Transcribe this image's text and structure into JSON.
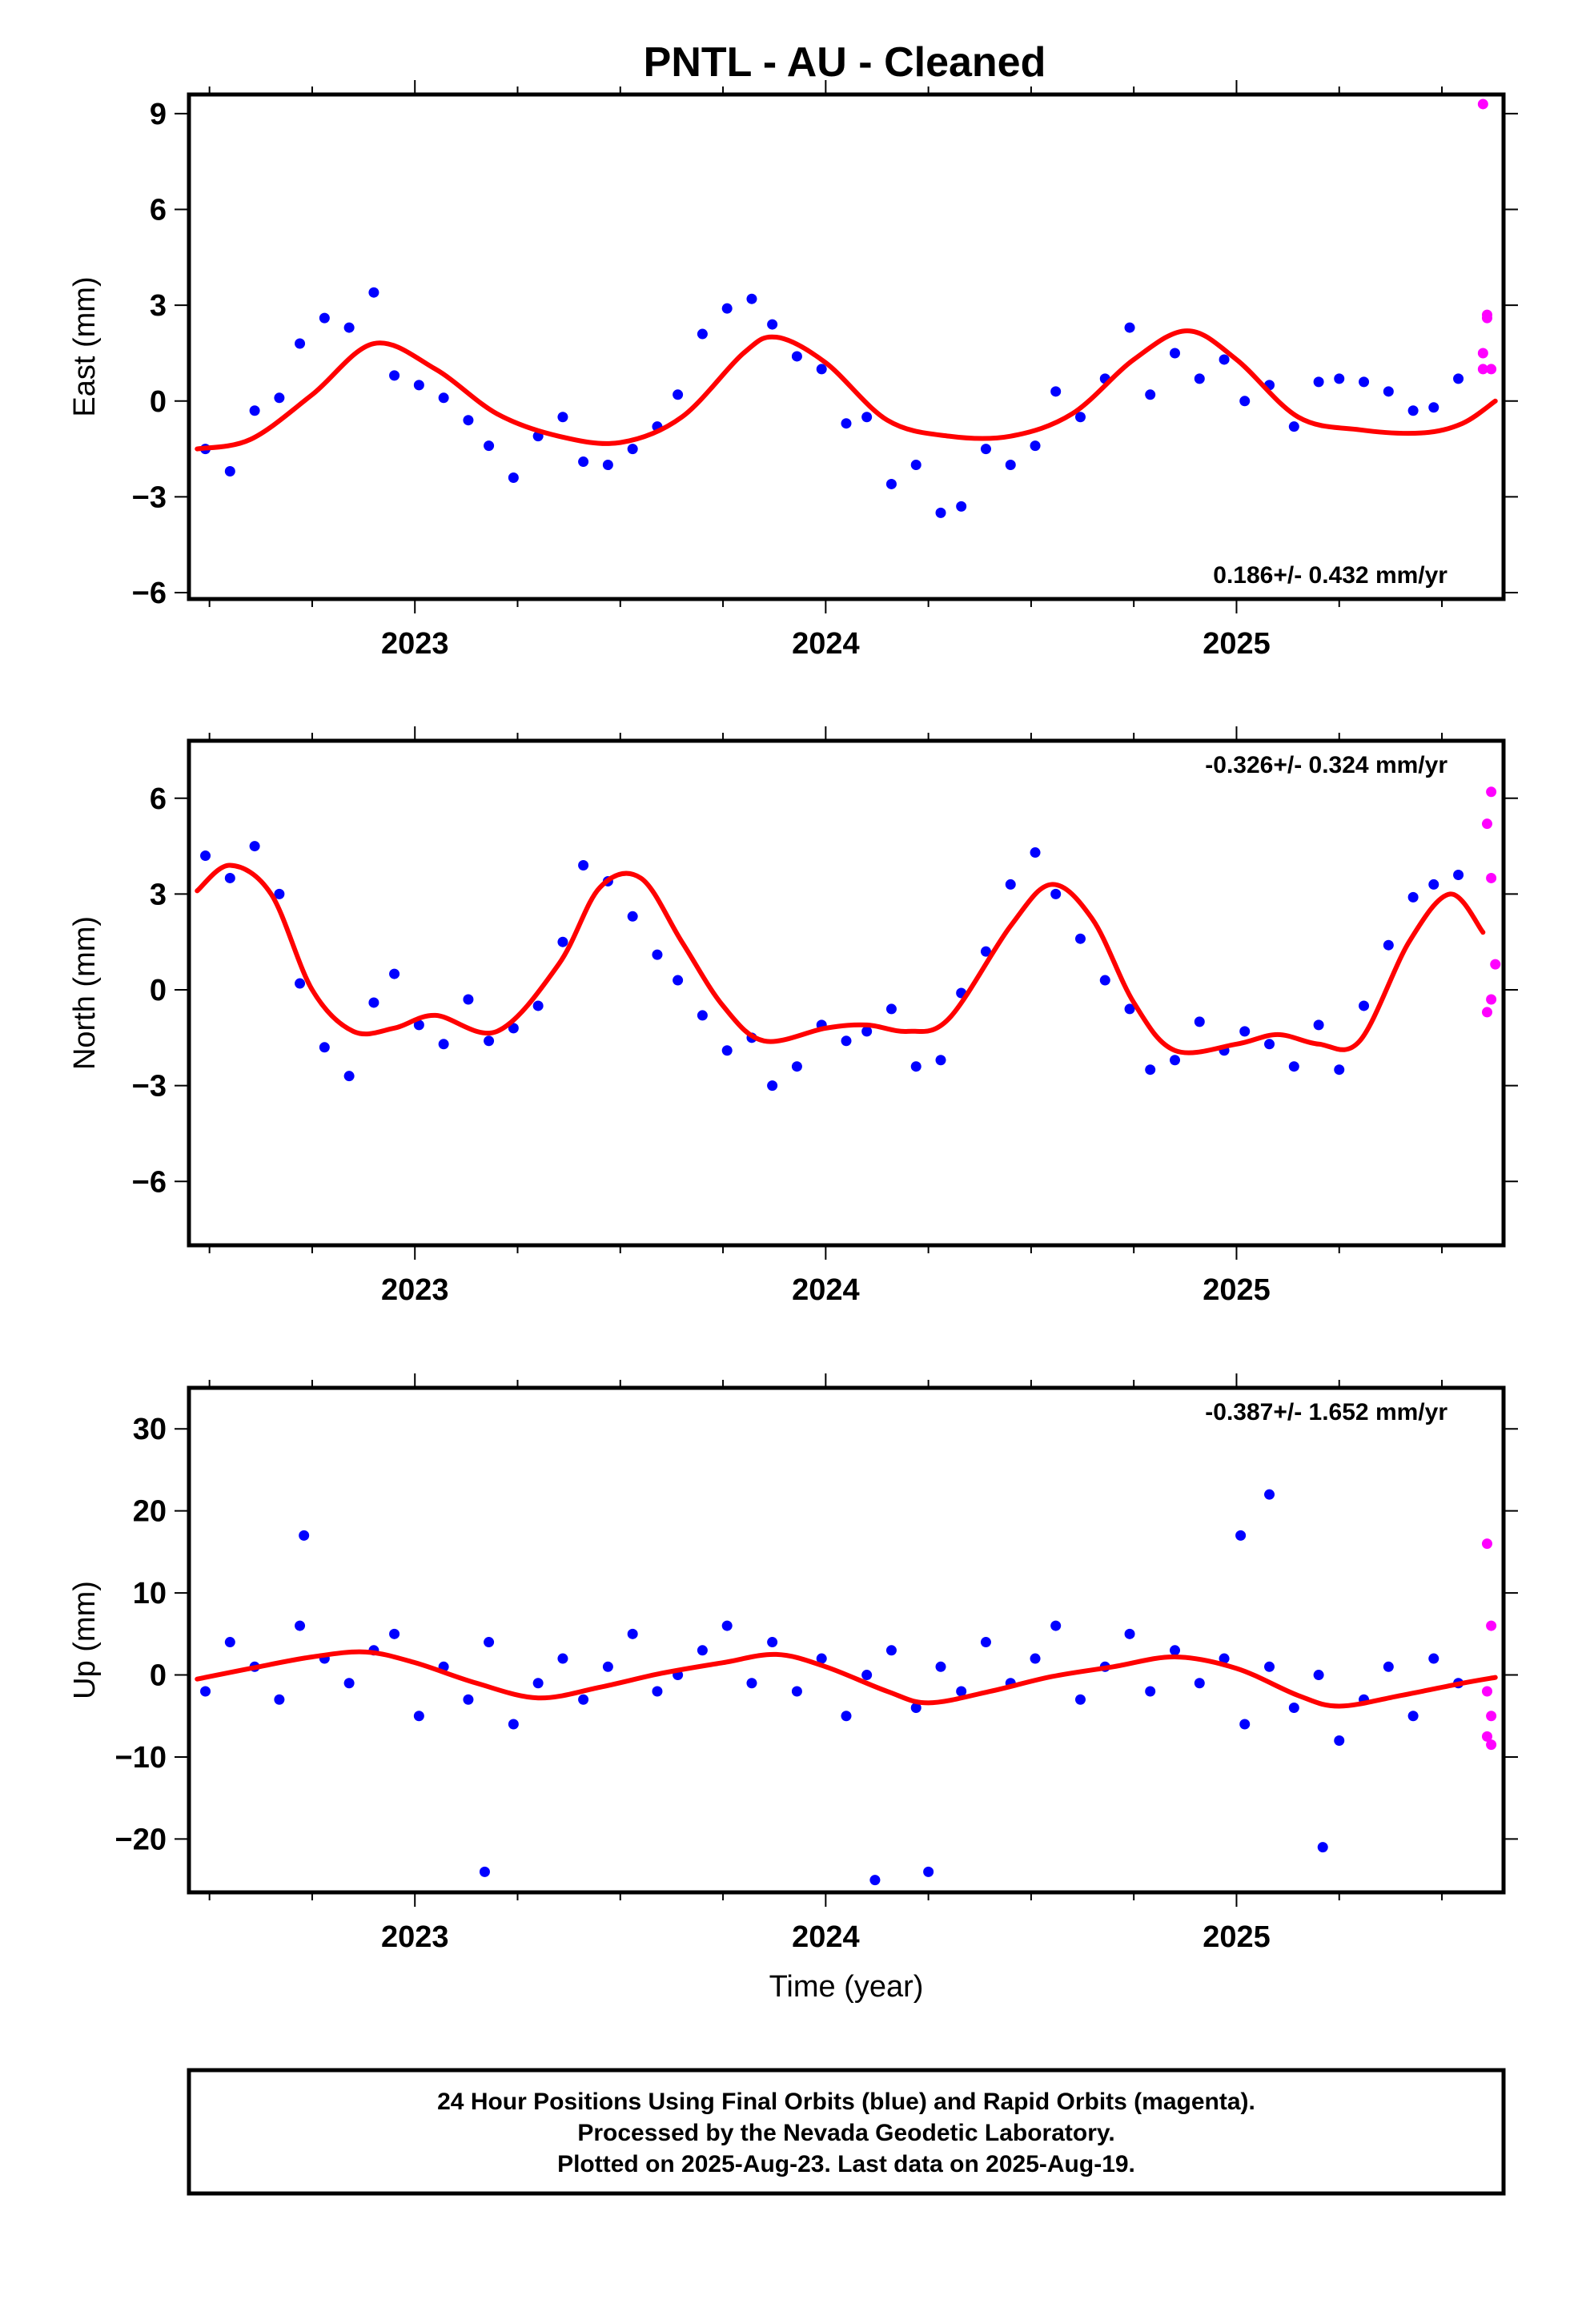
{
  "page": {
    "title": "PNTL  - AU - Cleaned",
    "footer_lines": [
      "24 Hour Positions Using Final Orbits (blue) and Rapid Orbits (magenta).",
      "Processed by the Nevada Geodetic Laboratory.",
      "Plotted on 2025-Aug-23. Last data on 2025-Aug-19."
    ]
  },
  "chart_data": [
    {
      "type": "scatter",
      "panel": "east",
      "ylabel": "East (mm)",
      "xlabel": "",
      "xlim": [
        2022.45,
        2025.65
      ],
      "ylim": [
        -6.2,
        9.6
      ],
      "yticks": [
        -6,
        -3,
        0,
        3,
        6,
        9
      ],
      "xticks": [
        2023,
        2024,
        2025
      ],
      "rate_label": "0.186+/- 0.432 mm/yr",
      "rate_position": "bottom-right",
      "grid": false,
      "colors": {
        "final": "#0000ff",
        "rapid": "#ff00ff",
        "fit": "#ff0000"
      },
      "series": [
        {
          "name": "Final Orbits (blue)",
          "kind": "points",
          "x": [
            2022.49,
            2022.55,
            2022.61,
            2022.67,
            2022.72,
            2022.78,
            2022.84,
            2022.9,
            2022.95,
            2023.01,
            2023.07,
            2023.13,
            2023.18,
            2023.24,
            2023.3,
            2023.36,
            2023.41,
            2023.47,
            2023.53,
            2023.59,
            2023.64,
            2023.7,
            2023.76,
            2023.82,
            2023.87,
            2023.93,
            2023.99,
            2024.05,
            2024.1,
            2024.16,
            2024.22,
            2024.28,
            2024.33,
            2024.39,
            2024.45,
            2024.51,
            2024.56,
            2024.62,
            2024.68,
            2024.74,
            2024.79,
            2024.85,
            2024.91,
            2024.97,
            2025.02,
            2025.08,
            2025.14,
            2025.2,
            2025.25,
            2025.31,
            2025.37,
            2025.43,
            2025.48,
            2025.54
          ],
          "y": [
            -1.5,
            -2.2,
            -0.3,
            0.1,
            1.8,
            2.6,
            2.3,
            3.4,
            0.8,
            0.5,
            0.1,
            -0.6,
            -1.4,
            -2.4,
            -1.1,
            -0.5,
            -1.9,
            -2.0,
            -1.5,
            -0.8,
            0.2,
            2.1,
            2.9,
            3.2,
            2.4,
            1.4,
            1.0,
            -0.7,
            -0.5,
            -2.6,
            -2.0,
            -3.5,
            -3.3,
            -1.5,
            -2.0,
            -1.4,
            0.3,
            -0.5,
            0.7,
            2.3,
            0.2,
            1.5,
            0.7,
            1.3,
            0.0,
            0.5,
            -0.8,
            0.6,
            0.7,
            0.6,
            0.3,
            -0.3,
            -0.2,
            0.7
          ]
        },
        {
          "name": "Rapid Orbits (magenta)",
          "kind": "points",
          "x": [
            2025.6,
            2025.61,
            2025.61,
            2025.6,
            2025.62,
            2025.6
          ],
          "y": [
            9.3,
            2.7,
            2.6,
            1.5,
            1.0,
            1.0
          ]
        },
        {
          "name": "fit",
          "kind": "line",
          "x": [
            2022.47,
            2022.6,
            2022.75,
            2022.9,
            2023.05,
            2023.2,
            2023.35,
            2023.5,
            2023.65,
            2023.8,
            2023.88,
            2024.0,
            2024.15,
            2024.3,
            2024.45,
            2024.6,
            2024.75,
            2024.88,
            2025.0,
            2025.15,
            2025.3,
            2025.45,
            2025.55,
            2025.63
          ],
          "y": [
            -1.5,
            -1.2,
            0.2,
            1.8,
            1.0,
            -0.4,
            -1.1,
            -1.3,
            -0.5,
            1.5,
            2.0,
            1.2,
            -0.6,
            -1.1,
            -1.1,
            -0.4,
            1.3,
            2.2,
            1.3,
            -0.5,
            -0.9,
            -1.0,
            -0.7,
            0.0
          ]
        }
      ]
    },
    {
      "type": "scatter",
      "panel": "north",
      "ylabel": "North (mm)",
      "xlabel": "",
      "xlim": [
        2022.45,
        2025.65
      ],
      "ylim": [
        -8,
        7.8
      ],
      "yticks": [
        -6,
        -3,
        0,
        3,
        6
      ],
      "xticks": [
        2023,
        2024,
        2025
      ],
      "rate_label": "-0.326+/- 0.324 mm/yr",
      "rate_position": "top-right",
      "grid": false,
      "colors": {
        "final": "#0000ff",
        "rapid": "#ff00ff",
        "fit": "#ff0000"
      },
      "series": [
        {
          "name": "Final Orbits (blue)",
          "kind": "points",
          "x": [
            2022.49,
            2022.55,
            2022.61,
            2022.67,
            2022.72,
            2022.78,
            2022.84,
            2022.9,
            2022.95,
            2023.01,
            2023.07,
            2023.13,
            2023.18,
            2023.24,
            2023.3,
            2023.36,
            2023.41,
            2023.47,
            2023.53,
            2023.59,
            2023.64,
            2023.7,
            2023.76,
            2023.82,
            2023.87,
            2023.93,
            2023.99,
            2024.05,
            2024.1,
            2024.16,
            2024.22,
            2024.28,
            2024.33,
            2024.39,
            2024.45,
            2024.51,
            2024.56,
            2024.62,
            2024.68,
            2024.74,
            2024.79,
            2024.85,
            2024.91,
            2024.97,
            2025.02,
            2025.08,
            2025.14,
            2025.2,
            2025.25,
            2025.31,
            2025.37,
            2025.43,
            2025.48,
            2025.54
          ],
          "y": [
            4.2,
            3.5,
            4.5,
            3.0,
            0.2,
            -1.8,
            -2.7,
            -0.4,
            0.5,
            -1.1,
            -1.7,
            -0.3,
            -1.6,
            -1.2,
            -0.5,
            1.5,
            3.9,
            3.4,
            2.3,
            1.1,
            0.3,
            -0.8,
            -1.9,
            -1.5,
            -3.0,
            -2.4,
            -1.1,
            -1.6,
            -1.3,
            -0.6,
            -2.4,
            -2.2,
            -0.1,
            1.2,
            3.3,
            4.3,
            3.0,
            1.6,
            0.3,
            -0.6,
            -2.5,
            -2.2,
            -1.0,
            -1.9,
            -1.3,
            -1.7,
            -2.4,
            -1.1,
            -2.5,
            -0.5,
            1.4,
            2.9,
            3.3,
            3.6
          ]
        },
        {
          "name": "Rapid Orbits (magenta)",
          "kind": "points",
          "x": [
            2025.62,
            2025.61,
            2025.62,
            2025.63,
            2025.62,
            2025.61
          ],
          "y": [
            6.2,
            5.2,
            3.5,
            0.8,
            -0.3,
            -0.7
          ]
        },
        {
          "name": "fit",
          "kind": "line",
          "x": [
            2022.47,
            2022.55,
            2022.65,
            2022.75,
            2022.85,
            2022.95,
            2023.05,
            2023.2,
            2023.35,
            2023.45,
            2023.55,
            2023.65,
            2023.75,
            2023.85,
            2024.0,
            2024.1,
            2024.2,
            2024.3,
            2024.45,
            2024.55,
            2024.65,
            2024.75,
            2024.85,
            2025.0,
            2025.1,
            2025.2,
            2025.3,
            2025.42,
            2025.52,
            2025.6
          ],
          "y": [
            3.1,
            3.9,
            3.0,
            0.0,
            -1.3,
            -1.2,
            -0.8,
            -1.3,
            0.8,
            3.2,
            3.5,
            1.5,
            -0.5,
            -1.6,
            -1.2,
            -1.1,
            -1.3,
            -0.9,
            2.0,
            3.3,
            2.2,
            -0.4,
            -1.9,
            -1.7,
            -1.4,
            -1.7,
            -1.6,
            1.5,
            3.0,
            1.8
          ]
        }
      ]
    },
    {
      "type": "scatter",
      "panel": "up",
      "ylabel": "Up (mm)",
      "xlabel": "Time (year)",
      "xlim": [
        2022.45,
        2025.65
      ],
      "ylim": [
        -26.5,
        35
      ],
      "yticks": [
        -20,
        -10,
        0,
        10,
        20,
        30
      ],
      "xticks": [
        2023,
        2024,
        2025
      ],
      "rate_label": "-0.387+/- 1.652 mm/yr",
      "rate_position": "top-right",
      "grid": false,
      "colors": {
        "final": "#0000ff",
        "rapid": "#ff00ff",
        "fit": "#ff0000"
      },
      "series": [
        {
          "name": "Final Orbits (blue)",
          "kind": "points",
          "x": [
            2022.49,
            2022.55,
            2022.61,
            2022.67,
            2022.72,
            2022.78,
            2022.84,
            2022.9,
            2022.95,
            2023.01,
            2023.07,
            2023.13,
            2023.18,
            2023.24,
            2023.3,
            2023.36,
            2023.41,
            2023.47,
            2023.53,
            2023.59,
            2023.64,
            2023.7,
            2023.76,
            2023.82,
            2023.87,
            2023.93,
            2023.99,
            2024.05,
            2024.1,
            2024.16,
            2024.22,
            2024.28,
            2024.33,
            2024.39,
            2024.45,
            2024.51,
            2024.56,
            2024.62,
            2024.68,
            2024.74,
            2024.79,
            2024.85,
            2024.91,
            2024.97,
            2025.02,
            2025.08,
            2025.14,
            2025.2,
            2025.25,
            2025.31,
            2025.37,
            2025.43,
            2025.48,
            2025.54,
            2025.21,
            2025.01,
            2025.08,
            2023.17,
            2024.12,
            2024.25,
            2022.73
          ],
          "y": [
            -2,
            4,
            1,
            -3,
            6,
            2,
            -1,
            3,
            5,
            -5,
            1,
            -3,
            4,
            -6,
            -1,
            2,
            -3,
            1,
            5,
            -2,
            0,
            3,
            6,
            -1,
            4,
            -2,
            2,
            -5,
            0,
            3,
            -4,
            1,
            -2,
            4,
            -1,
            2,
            6,
            -3,
            1,
            5,
            -2,
            3,
            -1,
            2,
            -6,
            1,
            -4,
            0,
            -8,
            -3,
            1,
            -5,
            2,
            -1,
            -21,
            17,
            22,
            -24,
            -25,
            -24,
            17
          ]
        },
        {
          "name": "Rapid Orbits (magenta)",
          "kind": "points",
          "x": [
            2025.61,
            2025.62,
            2025.61,
            2025.62,
            2025.61,
            2025.62
          ],
          "y": [
            16.0,
            6.0,
            -2.0,
            -5.0,
            -7.5,
            -8.5
          ]
        },
        {
          "name": "fit",
          "kind": "line",
          "x": [
            2022.47,
            2022.6,
            2022.75,
            2022.88,
            2023.0,
            2023.15,
            2023.3,
            2023.45,
            2023.6,
            2023.75,
            2023.88,
            2024.0,
            2024.15,
            2024.25,
            2024.4,
            2024.55,
            2024.7,
            2024.85,
            2025.0,
            2025.15,
            2025.25,
            2025.4,
            2025.55,
            2025.63
          ],
          "y": [
            -0.5,
            0.8,
            2.2,
            2.8,
            1.5,
            -1.0,
            -2.8,
            -1.5,
            0.2,
            1.5,
            2.5,
            1.0,
            -2.0,
            -3.4,
            -2.0,
            -0.2,
            1.0,
            2.2,
            0.8,
            -2.5,
            -3.8,
            -2.5,
            -1.0,
            -0.3
          ]
        }
      ]
    }
  ]
}
